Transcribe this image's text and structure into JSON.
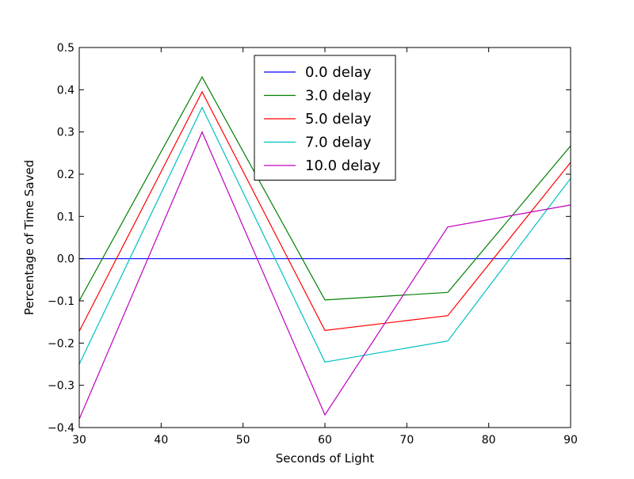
{
  "chart_data": {
    "type": "line",
    "title": "",
    "xlabel": "Seconds of Light",
    "ylabel": "Percentage of Time Saved",
    "xlim": [
      30,
      90
    ],
    "ylim": [
      -0.4,
      0.5
    ],
    "x_ticks": [
      "30",
      "40",
      "50",
      "60",
      "70",
      "80",
      "90"
    ],
    "y_ticks": [
      "−0.4",
      "−0.3",
      "−0.2",
      "−0.1",
      "0.0",
      "0.1",
      "0.2",
      "0.3",
      "0.4",
      "0.5"
    ],
    "x": [
      30,
      45,
      60,
      75,
      90
    ],
    "grid": false,
    "legend_position": "top-center",
    "series": [
      {
        "name": "0.0 delay",
        "color": "#0000ff",
        "values": [
          0.0,
          0.0,
          0.0,
          0.0,
          0.0
        ]
      },
      {
        "name": "3.0 delay",
        "color": "#008000",
        "values": [
          -0.1,
          0.43,
          -0.098,
          -0.08,
          0.267
        ]
      },
      {
        "name": "5.0 delay",
        "color": "#ff0000",
        "values": [
          -0.172,
          0.395,
          -0.17,
          -0.135,
          0.228
        ]
      },
      {
        "name": "7.0 delay",
        "color": "#00bfbf",
        "values": [
          -0.25,
          0.358,
          -0.245,
          -0.195,
          0.19
        ]
      },
      {
        "name": "10.0 delay",
        "color": "#bf00bf",
        "values": [
          -0.38,
          0.3,
          -0.37,
          0.075,
          0.127
        ]
      }
    ]
  }
}
